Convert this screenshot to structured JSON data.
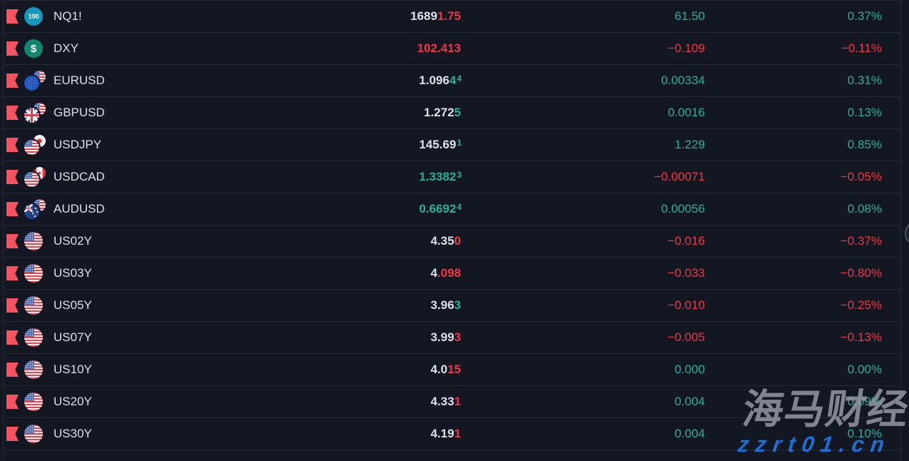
{
  "watchlist": {
    "rows": [
      {
        "symbol": "NQ1!",
        "icon": "nasdaq-100",
        "icon_text": "100",
        "price_white": "1689",
        "price_colored": "1.75",
        "price_dir": "down",
        "price_sup": "",
        "change": "61.50",
        "change_dir": "up",
        "pct": "0.37%",
        "pct_dir": "up"
      },
      {
        "symbol": "DXY",
        "icon": "usd-index",
        "icon_text": "$",
        "price_white": "",
        "price_colored": "102.413",
        "price_dir": "down",
        "price_sup": "",
        "change": "−0.109",
        "change_dir": "down",
        "pct": "−0.11%",
        "pct_dir": "down"
      },
      {
        "symbol": "EURUSD",
        "icon": "eur-usd-flags",
        "icon_text": "",
        "price_white": "1.096",
        "price_colored": "4",
        "price_dir": "up",
        "price_sup": "4",
        "change": "0.00334",
        "change_dir": "up",
        "pct": "0.31%",
        "pct_dir": "up"
      },
      {
        "symbol": "GBPUSD",
        "icon": "gbp-usd-flags",
        "icon_text": "",
        "price_white": "1.272",
        "price_colored": "5",
        "price_dir": "up",
        "price_sup": "",
        "change": "0.0016",
        "change_dir": "up",
        "pct": "0.13%",
        "pct_dir": "up"
      },
      {
        "symbol": "USDJPY",
        "icon": "usd-jpy-flags",
        "icon_text": "",
        "price_white": "145.69",
        "price_colored": "",
        "price_dir": "up",
        "price_sup": "1",
        "change": "1.229",
        "change_dir": "up",
        "pct": "0.85%",
        "pct_dir": "up"
      },
      {
        "symbol": "USDCAD",
        "icon": "usd-cad-flags",
        "icon_text": "",
        "price_white": "",
        "price_colored": "1.3382",
        "price_dir": "up",
        "price_sup": "3",
        "change": "−0.00071",
        "change_dir": "down",
        "pct": "−0.05%",
        "pct_dir": "down"
      },
      {
        "symbol": "AUDUSD",
        "icon": "aud-usd-flags",
        "icon_text": "",
        "price_white": "",
        "price_colored": "0.6692",
        "price_dir": "up",
        "price_sup": "4",
        "change": "0.00056",
        "change_dir": "up",
        "pct": "0.08%",
        "pct_dir": "up"
      },
      {
        "symbol": "US02Y",
        "icon": "us-flag",
        "icon_text": "",
        "price_white": "4.35",
        "price_colored": "0",
        "price_dir": "down",
        "price_sup": "",
        "change": "−0.016",
        "change_dir": "down",
        "pct": "−0.37%",
        "pct_dir": "down"
      },
      {
        "symbol": "US03Y",
        "icon": "us-flag",
        "icon_text": "",
        "price_white": "4",
        "price_colored": ".098",
        "price_dir": "down",
        "price_sup": "",
        "change": "−0.033",
        "change_dir": "down",
        "pct": "−0.80%",
        "pct_dir": "down"
      },
      {
        "symbol": "US05Y",
        "icon": "us-flag",
        "icon_text": "",
        "price_white": "3.96",
        "price_colored": "3",
        "price_dir": "up",
        "price_sup": "",
        "change": "−0.010",
        "change_dir": "down",
        "pct": "−0.25%",
        "pct_dir": "down"
      },
      {
        "symbol": "US07Y",
        "icon": "us-flag",
        "icon_text": "",
        "price_white": "3.99",
        "price_colored": "3",
        "price_dir": "down",
        "price_sup": "",
        "change": "−0.005",
        "change_dir": "down",
        "pct": "−0.13%",
        "pct_dir": "down"
      },
      {
        "symbol": "US10Y",
        "icon": "us-flag",
        "icon_text": "",
        "price_white": "4.0",
        "price_colored": "15",
        "price_dir": "down",
        "price_sup": "",
        "change": "0.000",
        "change_dir": "up",
        "pct": "0.00%",
        "pct_dir": "up"
      },
      {
        "symbol": "US20Y",
        "icon": "us-flag",
        "icon_text": "",
        "price_white": "4.33",
        "price_colored": "1",
        "price_dir": "down",
        "price_sup": "",
        "change": "0.004",
        "change_dir": "up",
        "pct": "0.09%",
        "pct_dir": "up"
      },
      {
        "symbol": "US30Y",
        "icon": "us-flag",
        "icon_text": "",
        "price_white": "4.19",
        "price_colored": "1",
        "price_dir": "down",
        "price_sup": "",
        "change": "0.004",
        "change_dir": "up",
        "pct": "0.10%",
        "pct_dir": "up"
      }
    ]
  },
  "watermark": {
    "title": "海马财经",
    "url": "zzrt01.cn"
  },
  "colors": {
    "up": "#27b0a0",
    "down": "#f23645",
    "flag_red": "#f7525f",
    "background": "#131722"
  }
}
